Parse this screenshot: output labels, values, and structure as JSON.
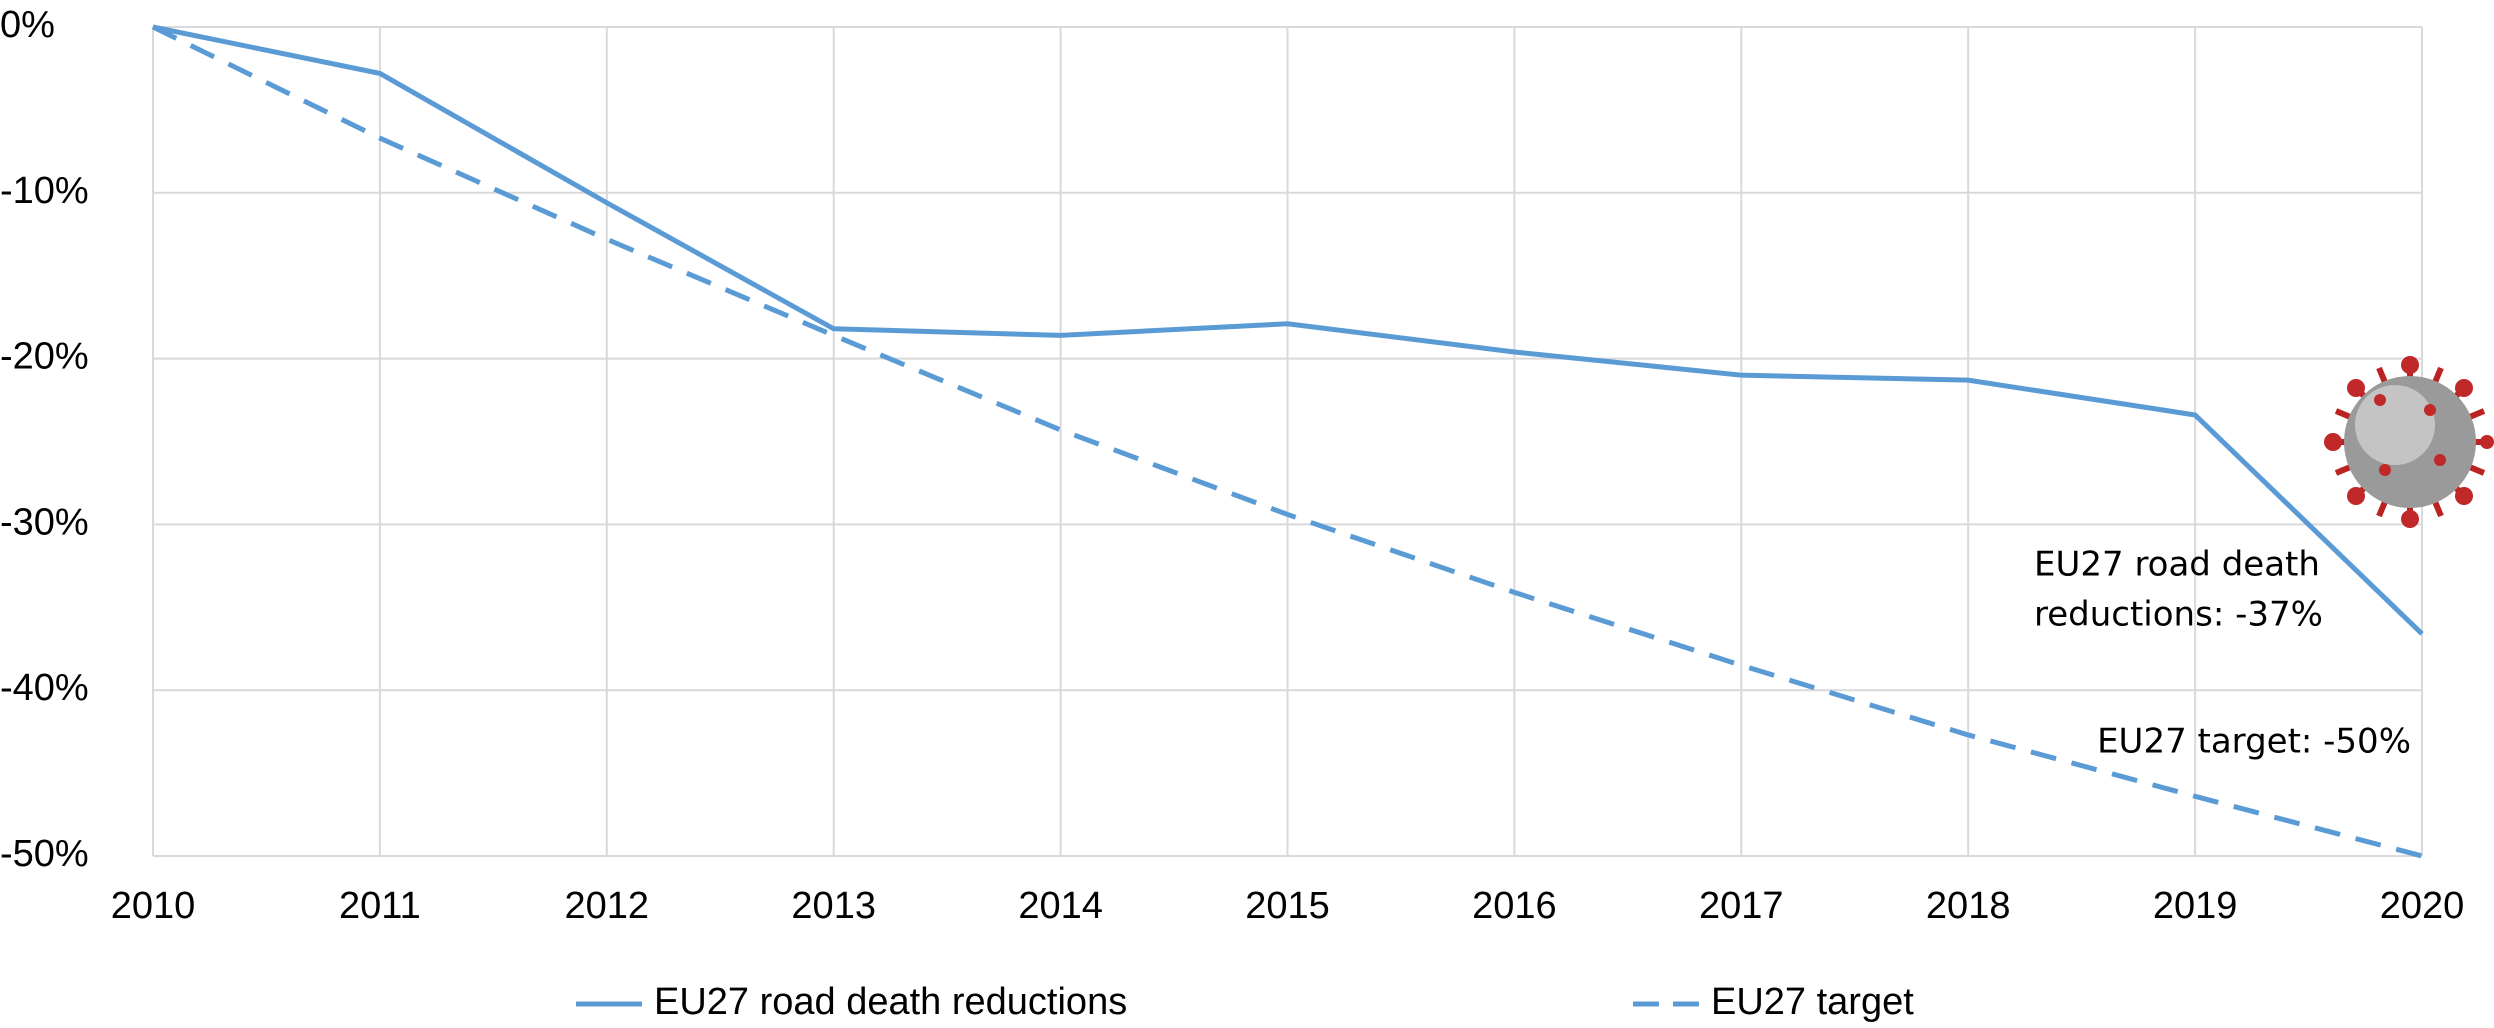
{
  "chart_data": {
    "type": "line",
    "x": [
      2010,
      2011,
      2012,
      2013,
      2014,
      2015,
      2016,
      2017,
      2018,
      2019,
      2020
    ],
    "series": [
      {
        "name": "EU27 road death reductions",
        "color": "#5b9bd5",
        "line_style": "solid",
        "values": [
          0,
          -2.8,
          -10.6,
          -18.2,
          -18.6,
          -17.9,
          -19.6,
          -21.0,
          -21.3,
          -23.4,
          -36.6
        ]
      },
      {
        "name": "EU27 target",
        "color": "#5b9bd5",
        "line_style": "dashed",
        "values": [
          0,
          -6.7,
          -12.8,
          -18.6,
          -24.3,
          -29.4,
          -34.1,
          -38.5,
          -42.7,
          -46.4,
          -50
        ]
      }
    ],
    "xlim": [
      2010,
      2020
    ],
    "xticks": [
      2010,
      2011,
      2012,
      2013,
      2014,
      2015,
      2016,
      2017,
      2018,
      2019,
      2020
    ],
    "ylim": [
      -50,
      0
    ],
    "yticks": [
      {
        "value": 0,
        "label": "0%"
      },
      {
        "value": -10,
        "label": "-10%"
      },
      {
        "value": -20,
        "label": "-20%"
      },
      {
        "value": -30,
        "label": "-30%"
      },
      {
        "value": -40,
        "label": "-40%"
      },
      {
        "value": -50,
        "label": "-50%"
      }
    ],
    "grid": true,
    "legend": "bottom",
    "annotations": [
      {
        "lines": [
          "EU27 road death",
          "reductions: -37%"
        ]
      },
      {
        "lines": [
          "EU27 target: -50%"
        ]
      }
    ]
  }
}
